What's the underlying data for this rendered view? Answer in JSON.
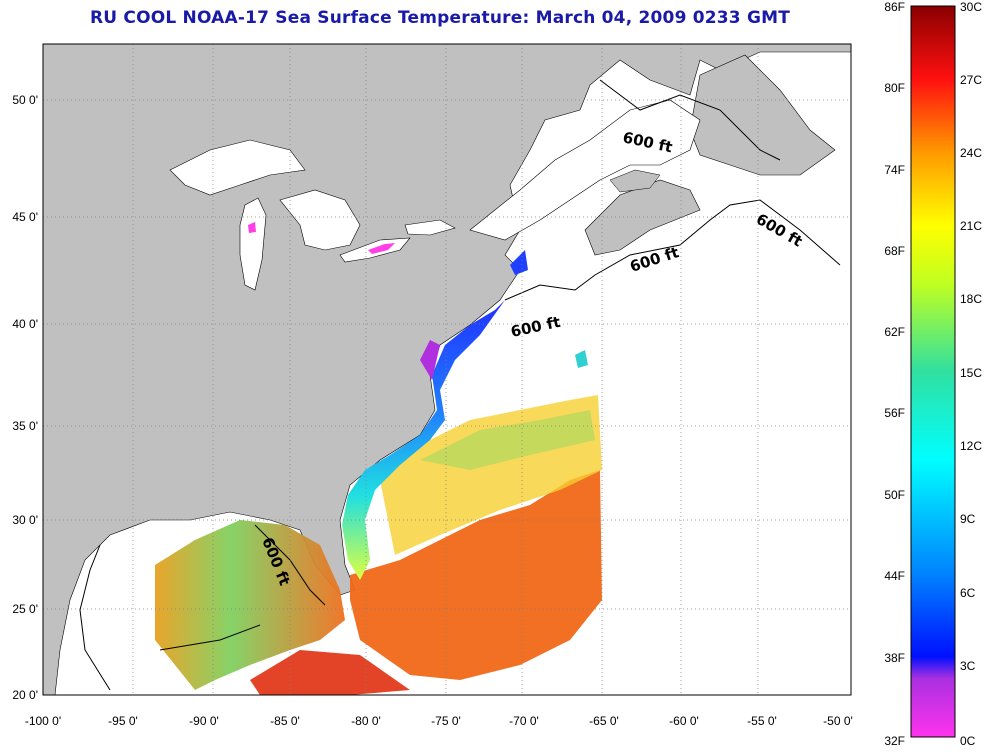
{
  "title": "RU COOL  NOAA-17  Sea Surface Temperature:  March 04, 2009 0233 GMT",
  "map": {
    "lon_ticks": [
      "-100 0'",
      "-95 0'",
      "-90 0'",
      "-85 0'",
      "-80 0'",
      "-75 0'",
      "-70 0'",
      "-65 0'",
      "-60 0'",
      "-55 0'",
      "-50 0'"
    ],
    "lat_ticks": [
      "50 0'",
      "45 0'",
      "40 0'",
      "35 0'",
      "30 0'",
      "25 0'",
      "20 0'"
    ],
    "contour_labels": [
      "600 ft",
      "600 ft",
      "600 ft",
      "600 ft",
      "600 ft"
    ],
    "colors": {
      "land": "#c0c0c0",
      "ocean_nodata": "#ffffff",
      "grid": "#808080"
    }
  },
  "colorbar": {
    "f_labels": [
      "86F",
      "80F",
      "74F",
      "68F",
      "62F",
      "56F",
      "50F",
      "44F",
      "38F",
      "32F"
    ],
    "c_labels": [
      "30C",
      "27C",
      "24C",
      "21C",
      "18C",
      "15C",
      "12C",
      "9C",
      "6C",
      "3C",
      "0C"
    ],
    "f_range": [
      32,
      86
    ],
    "c_range": [
      0,
      30
    ]
  }
}
